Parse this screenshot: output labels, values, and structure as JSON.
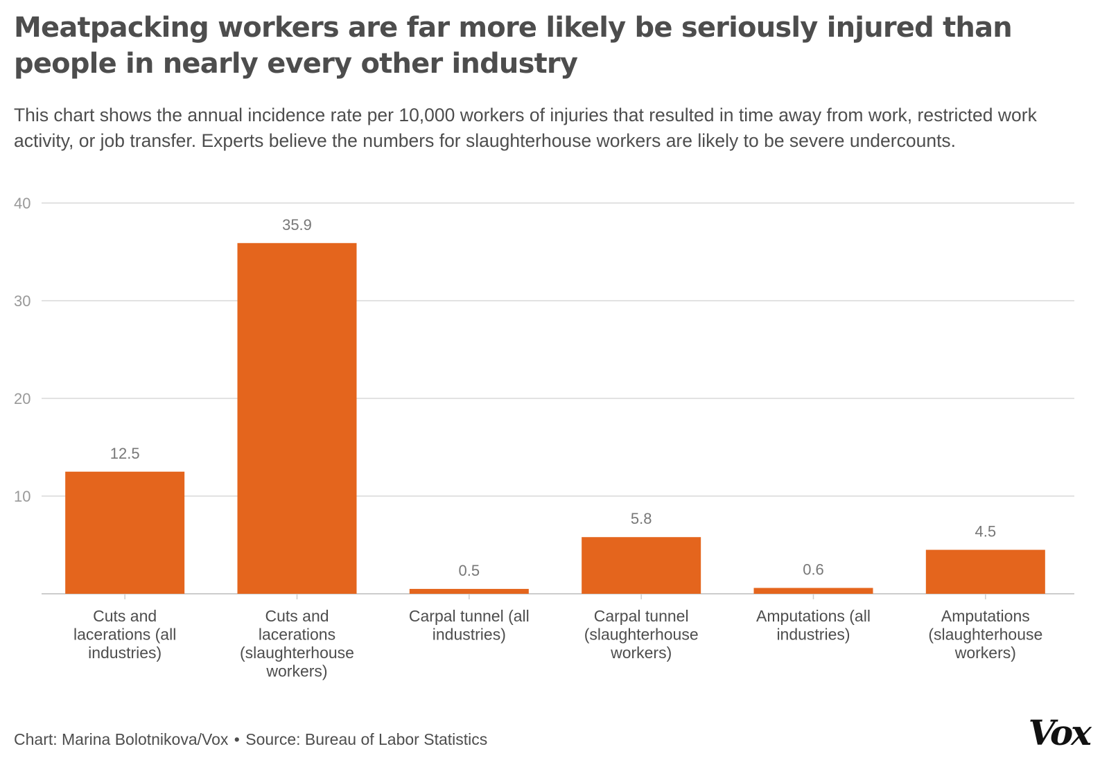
{
  "title": "Meatpacking workers are far more likely be seriously injured than people in nearly every other industry",
  "subtitle": "This chart shows the annual incidence rate per 10,000 workers of injuries that resulted in time away from work, restricted work activity, or job transfer. Experts believe the numbers for slaughterhouse workers are likely to be severe undercounts.",
  "footer": {
    "credit": "Chart: Marina Bolotnikova/Vox",
    "separator": "•",
    "source": "Source: Bureau of Labor Statistics"
  },
  "logo": "Vox",
  "colors": {
    "bar": "#e4651d",
    "grid": "#d9d9d9",
    "axis_text": "#999999",
    "value_text": "#777777",
    "category_text": "#4d4d4d"
  },
  "chart_data": {
    "type": "bar",
    "categories": [
      [
        "Cuts and",
        "lacerations (all",
        "industries)"
      ],
      [
        "Cuts and",
        "lacerations",
        "(slaughterhouse",
        "workers)"
      ],
      [
        "Carpal tunnel (all",
        "industries)"
      ],
      [
        "Carpal tunnel",
        "(slaughterhouse",
        "workers)"
      ],
      [
        "Amputations (all",
        "industries)"
      ],
      [
        "Amputations",
        "(slaughterhouse",
        "workers)"
      ]
    ],
    "values": [
      12.5,
      35.9,
      0.5,
      5.8,
      0.6,
      4.5
    ],
    "value_labels": [
      "12.5",
      "35.9",
      "0.5",
      "5.8",
      "0.6",
      "4.5"
    ],
    "ylim": [
      0,
      40
    ],
    "yticks": [
      10,
      20,
      30,
      40
    ],
    "ytick_labels": [
      "10",
      "20",
      "30",
      "40"
    ],
    "grid": true,
    "xlabel": "",
    "ylabel": ""
  }
}
